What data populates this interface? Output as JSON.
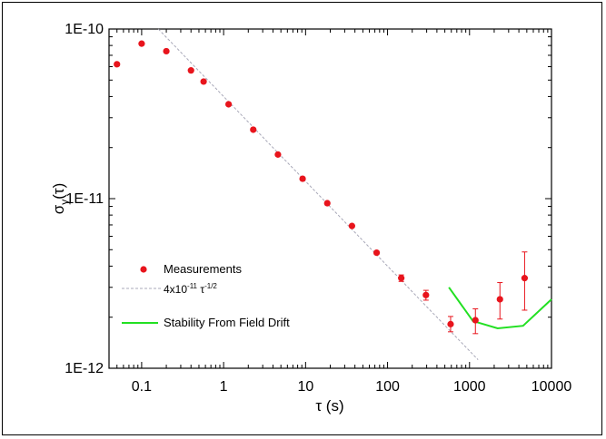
{
  "chart_data": {
    "type": "scatter",
    "x_scale": "log",
    "y_scale": "log",
    "xlim": [
      0.04,
      10000
    ],
    "ylim": [
      1e-12,
      1e-10
    ],
    "xlabel": "τ (s)",
    "ylabel": {
      "base": "σ",
      "sub": "y",
      "rest": "(τ)"
    },
    "x_ticks": [
      {
        "value": 0.1,
        "label": "0.1"
      },
      {
        "value": 1,
        "label": "1"
      },
      {
        "value": 10,
        "label": "10"
      },
      {
        "value": 100,
        "label": "100"
      },
      {
        "value": 1000,
        "label": "1000"
      },
      {
        "value": 10000,
        "label": "10000"
      }
    ],
    "y_ticks": [
      {
        "value": 1e-10,
        "label": "1E-10"
      },
      {
        "value": 1e-11,
        "label": "1E-11"
      },
      {
        "value": 1e-12,
        "label": "1E-12"
      }
    ],
    "grid": false,
    "series": [
      {
        "name": "Measurements",
        "kind": "points",
        "color": "#e8141c",
        "x": [
          0.05,
          0.1,
          0.2,
          0.4,
          0.57,
          1.15,
          2.3,
          4.6,
          9.2,
          18.4,
          36.8,
          73.6,
          147,
          294,
          588,
          1180,
          2350,
          4700
        ],
        "y": [
          6.2e-11,
          8.2e-11,
          7.4e-11,
          5.7e-11,
          4.9e-11,
          3.6e-11,
          2.55e-11,
          1.82e-11,
          1.31e-11,
          9.4e-12,
          6.9e-12,
          4.8e-12,
          3.4e-12,
          2.7e-12,
          1.82e-12,
          1.92e-12,
          2.55e-12,
          3.4e-12
        ],
        "y_err_low": [
          0,
          0,
          0,
          0,
          0,
          0,
          0,
          0,
          0,
          0,
          0,
          1e-13,
          1.5e-13,
          1.8e-13,
          1.8e-13,
          3.2e-13,
          6e-13,
          1.2e-12
        ],
        "y_err_high": [
          0,
          0,
          0,
          0,
          0,
          0,
          0,
          0,
          0,
          0,
          0,
          1e-13,
          1.5e-13,
          1.8e-13,
          2e-13,
          3.2e-13,
          6.5e-13,
          1.45e-12
        ]
      },
      {
        "name": "4x10⁻¹¹ τ⁻¹ᐟ²",
        "kind": "dashed-line",
        "color": "#a8a8b8",
        "formula": "4e-11 * tau^(-1/2)",
        "x_range": [
          0.16,
          1600
        ]
      },
      {
        "name": "Stability From Field Drift",
        "kind": "line",
        "color": "#22e022",
        "x": [
          560,
          1100,
          2200,
          4500,
          10000
        ],
        "y": [
          3e-12,
          1.9e-12,
          1.72e-12,
          1.78e-12,
          2.55e-12
        ]
      }
    ],
    "legend": {
      "position": "lower-left",
      "entries": [
        {
          "label": "Measurements"
        },
        {
          "label_main": "4x10",
          "label_exp1": "-11",
          "label_tau": " τ",
          "label_exp2": "-1/2"
        },
        {
          "label": "Stability From Field Drift"
        }
      ]
    }
  }
}
